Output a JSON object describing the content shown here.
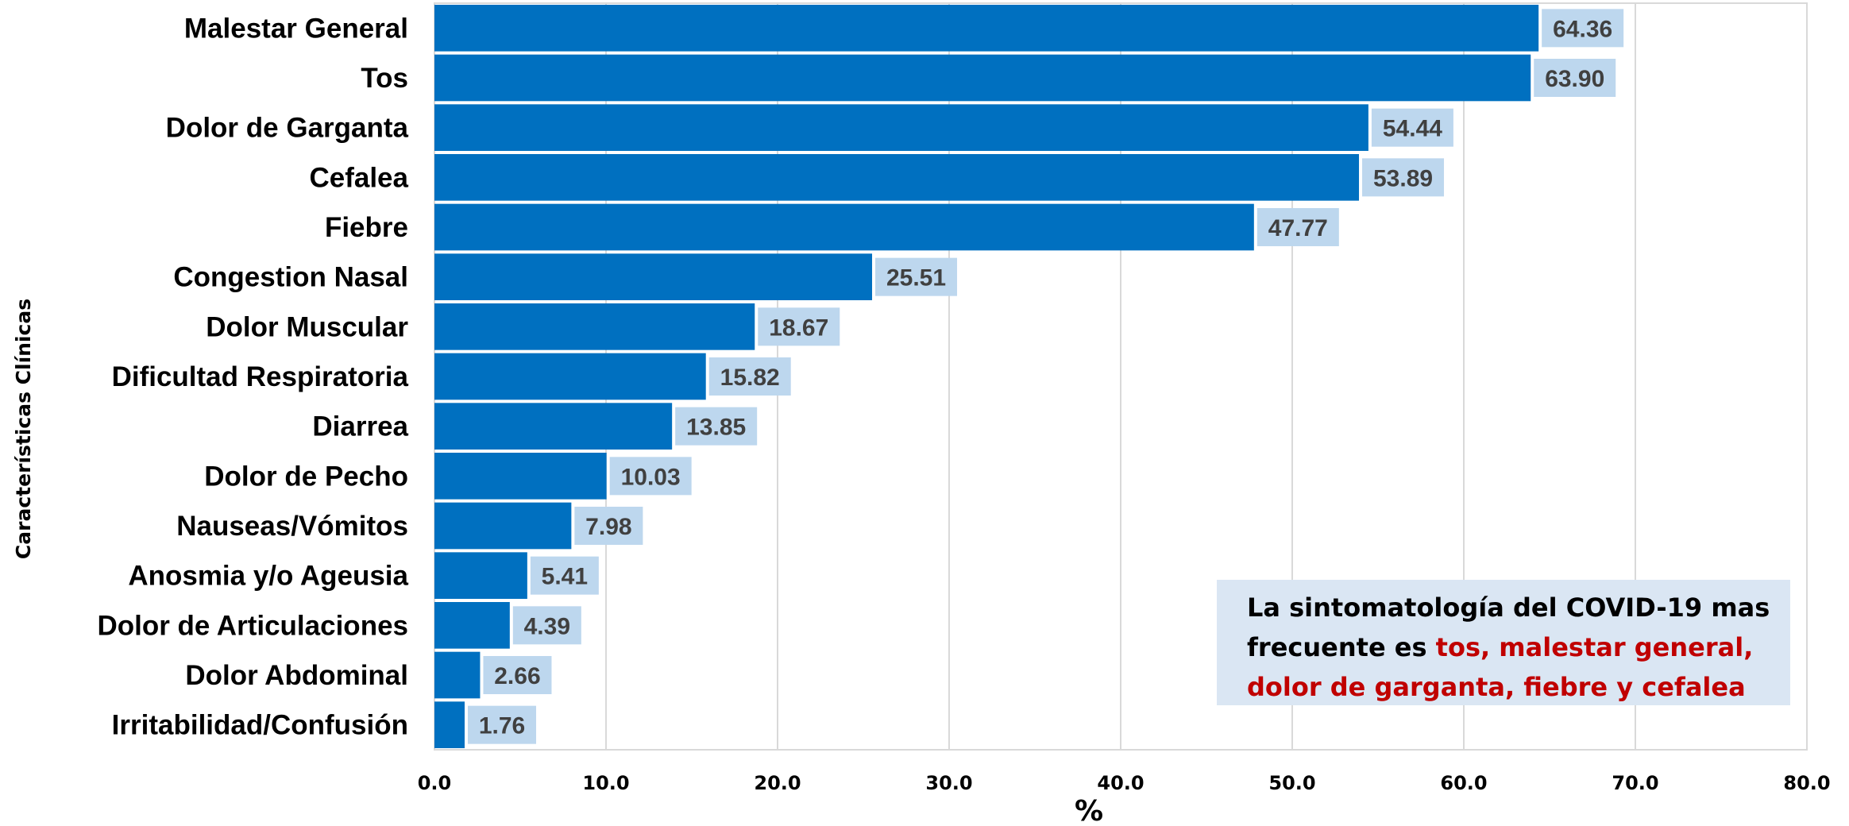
{
  "chart_data": {
    "type": "bar",
    "orientation": "horizontal",
    "categories": [
      "Malestar General",
      "Tos",
      "Dolor de Garganta",
      "Cefalea",
      "Fiebre",
      "Congestion Nasal",
      "Dolor Muscular",
      "Dificultad Respiratoria",
      "Diarrea",
      "Dolor de Pecho",
      "Nauseas/Vómitos",
      "Anosmia y/o Ageusia",
      "Dolor de Articulaciones",
      "Dolor Abdominal",
      "Irritabilidad/Confusión"
    ],
    "values": [
      64.36,
      63.9,
      54.44,
      53.89,
      47.77,
      25.51,
      18.67,
      15.82,
      13.85,
      10.03,
      7.98,
      5.41,
      4.39,
      2.66,
      1.76
    ],
    "data_labels": [
      "64.36",
      "63.90",
      "54.44",
      "53.89",
      "47.77",
      "25.51",
      "18.67",
      "15.82",
      "13.85",
      "10.03",
      "7.98",
      "5.41",
      "4.39",
      "2.66",
      "1.76"
    ],
    "xlabel": "%",
    "ylabel": "Características Clínicas",
    "xlim": [
      0,
      80
    ],
    "xticks": [
      "0.0",
      "10.0",
      "20.0",
      "30.0",
      "40.0",
      "50.0",
      "60.0",
      "70.0",
      "80.0"
    ],
    "grid": "vertical",
    "legend": "none",
    "bar_color": "#0070c0",
    "label_bg_color": "#bdd7ee",
    "annotation": {
      "prefix": "La sintomatología del COVID-19 mas frecuente es ",
      "highlight": "tos, malestar general, dolor de garganta, fiebre y cefalea",
      "box_color": "#dae6f3",
      "highlight_color": "#c00000"
    }
  }
}
